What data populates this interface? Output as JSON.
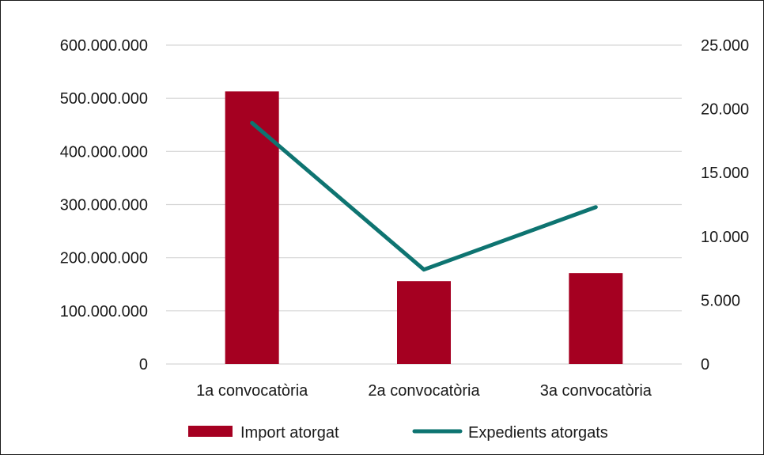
{
  "chart_data": {
    "type": "bar+line",
    "categories": [
      "1a convocatòria",
      "2a convocatòria",
      "3a convocatòria"
    ],
    "series": [
      {
        "name": "Import atorgat",
        "type": "bar",
        "axis": "left",
        "color": "#A50021",
        "values": [
          513000000,
          156000000,
          171000000
        ]
      },
      {
        "name": "Expedients atorgats",
        "type": "line",
        "axis": "right",
        "color": "#0E7471",
        "values": [
          18900,
          7400,
          12300
        ]
      }
    ],
    "y_left": {
      "ticks": [
        "0",
        "100.000.000",
        "200.000.000",
        "300.000.000",
        "400.000.000",
        "500.000.000",
        "600.000.000"
      ],
      "ylim": [
        0,
        600000000
      ]
    },
    "y_right": {
      "ticks": [
        "0",
        "5.000",
        "10.000",
        "15.000",
        "20.000",
        "25.000"
      ],
      "ylim": [
        0,
        25000
      ]
    },
    "grid": true,
    "legend_position": "bottom"
  }
}
